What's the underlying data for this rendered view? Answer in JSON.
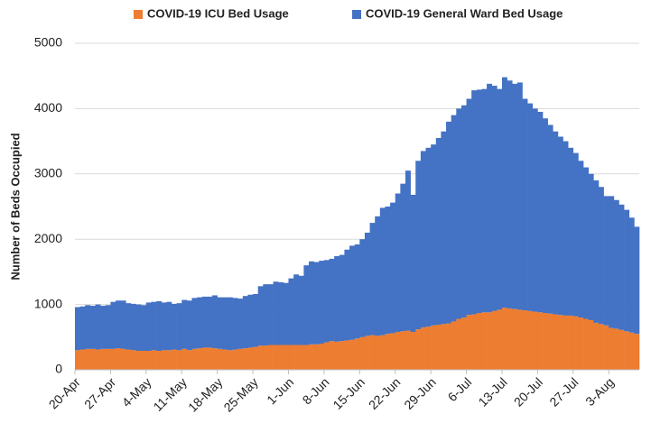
{
  "chart_data": {
    "type": "stacked_bar",
    "y_label": "Number of Beds Occupied",
    "categories": [
      "20-Apr",
      null,
      null,
      null,
      null,
      null,
      null,
      "27-Apr",
      null,
      null,
      null,
      null,
      null,
      null,
      "4-May",
      null,
      null,
      null,
      null,
      null,
      null,
      "11-May",
      null,
      null,
      null,
      null,
      null,
      null,
      "18-May",
      null,
      null,
      null,
      null,
      null,
      null,
      "25-May",
      null,
      null,
      null,
      null,
      null,
      null,
      "1-Jun",
      null,
      null,
      null,
      null,
      null,
      null,
      "8-Jun",
      null,
      null,
      null,
      null,
      null,
      null,
      "15-Jun",
      null,
      null,
      null,
      null,
      null,
      null,
      "22-Jun",
      null,
      null,
      null,
      null,
      null,
      null,
      "29-Jun",
      null,
      null,
      null,
      null,
      null,
      null,
      "6-Jul",
      null,
      null,
      null,
      null,
      null,
      null,
      "13-Jul",
      null,
      null,
      null,
      null,
      null,
      null,
      "20-Jul",
      null,
      null,
      null,
      null,
      null,
      null,
      "27-Jul",
      null,
      null,
      null,
      null,
      null,
      null,
      "3-Aug",
      null,
      null,
      null,
      null,
      null
    ],
    "series": [
      {
        "name": "COVID-19 ICU Bed Usage",
        "color": "#ed7d31",
        "values": [
          300,
          310,
          320,
          320,
          310,
          320,
          320,
          320,
          330,
          320,
          310,
          300,
          290,
          290,
          290,
          300,
          290,
          300,
          300,
          310,
          300,
          320,
          300,
          320,
          330,
          340,
          340,
          330,
          320,
          310,
          300,
          310,
          320,
          330,
          340,
          350,
          370,
          370,
          380,
          380,
          380,
          380,
          380,
          380,
          380,
          380,
          390,
          390,
          400,
          420,
          440,
          430,
          440,
          450,
          460,
          480,
          500,
          520,
          530,
          520,
          530,
          550,
          560,
          580,
          590,
          600,
          580,
          620,
          650,
          660,
          680,
          690,
          700,
          710,
          740,
          780,
          800,
          840,
          850,
          870,
          880,
          880,
          900,
          920,
          950,
          940,
          930,
          920,
          910,
          900,
          890,
          880,
          870,
          860,
          850,
          840,
          830,
          830,
          820,
          800,
          780,
          760,
          720,
          700,
          680,
          640,
          630,
          610,
          590,
          570,
          550
        ]
      },
      {
        "name": "COVID-19 General Ward Bed Usage",
        "color": "#4472c4",
        "values": [
          660,
          660,
          670,
          660,
          690,
          660,
          670,
          720,
          730,
          740,
          710,
          710,
          710,
          700,
          740,
          740,
          760,
          730,
          740,
          700,
          720,
          750,
          760,
          780,
          780,
          780,
          780,
          810,
          790,
          800,
          810,
          790,
          770,
          800,
          810,
          810,
          910,
          940,
          930,
          970,
          960,
          950,
          1020,
          1080,
          1060,
          1220,
          1270,
          1260,
          1270,
          1260,
          1260,
          1310,
          1320,
          1390,
          1440,
          1440,
          1500,
          1580,
          1720,
          1830,
          1950,
          1950,
          2000,
          2120,
          2260,
          2450,
          2100,
          2580,
          2700,
          2740,
          2770,
          2860,
          2950,
          3090,
          3160,
          3220,
          3250,
          3310,
          3430,
          3420,
          3420,
          3500,
          3450,
          3380,
          3530,
          3490,
          3450,
          3480,
          3240,
          3180,
          3110,
          3070,
          2980,
          2890,
          2800,
          2730,
          2670,
          2570,
          2500,
          2400,
          2320,
          2240,
          2180,
          2100,
          1980,
          2020,
          1970,
          1920,
          1860,
          1760,
          1640
        ]
      }
    ],
    "ylim": [
      0,
      5000
    ],
    "yticks": [
      0,
      1000,
      2000,
      3000,
      4000,
      5000
    ],
    "grid": true,
    "legend": "top"
  }
}
